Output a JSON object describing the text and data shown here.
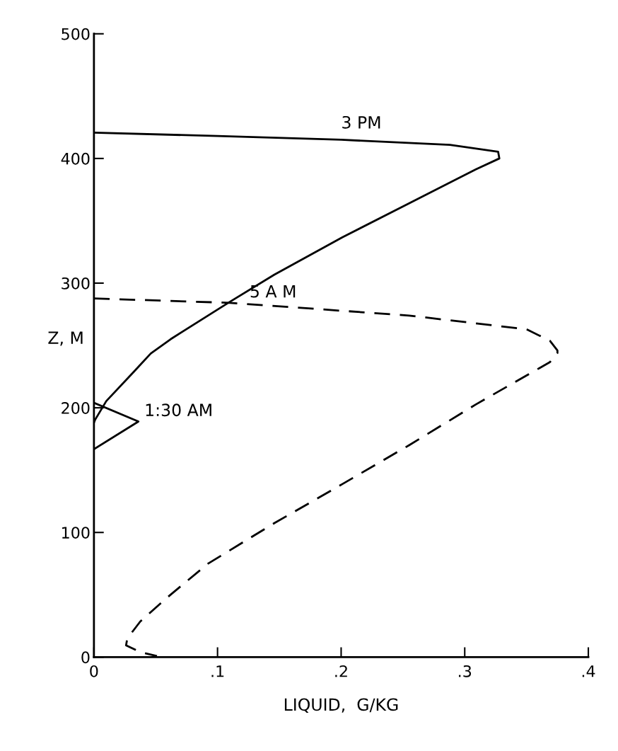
{
  "chart_data": {
    "type": "line",
    "xlabel": "LIQUID,  G/KG",
    "ylabel": "Z, M",
    "xlim": [
      0,
      0.4
    ],
    "ylim": [
      0,
      500
    ],
    "xticks": [
      0,
      {
        "value": 0.1,
        "label": ".1"
      },
      {
        "value": 0.2,
        "label": ".2"
      },
      {
        "value": 0.3,
        "label": ".3"
      },
      {
        "value": 0.4,
        "label": ".4"
      }
    ],
    "yticks": [
      0,
      100,
      200,
      300,
      400,
      500
    ],
    "grid": false,
    "legend": false,
    "marker": "none",
    "series": [
      {
        "name": "3 PM",
        "color": "#000000",
        "line_style": "solid",
        "x": [
          0,
          0.1,
          0.2,
          0.288,
          0.327,
          0.328,
          0.309,
          0.255,
          0.201,
          0.146,
          0.11,
          0.062,
          0.046,
          0.032,
          0.01,
          0.001,
          0
        ],
        "values": [
          420.7,
          418,
          415,
          410.9,
          405.4,
          400,
          391.3,
          364,
          336.8,
          306.8,
          285,
          255,
          243.6,
          228.6,
          205.4,
          190.5,
          188
        ]
      },
      {
        "name": "5 A M",
        "color": "#000000",
        "line_style": "dashed",
        "x": [
          0,
          0.11,
          0.255,
          0.35,
          0.369,
          0.375,
          0.375,
          0.369,
          0.309,
          0.255,
          0.201,
          0.146,
          0.092,
          0.059,
          0.0375,
          0.027,
          0.026,
          0.0375,
          0.051
        ],
        "values": [
          287.7,
          284.2,
          274,
          263,
          253.7,
          246,
          244,
          236.7,
          202.7,
          170,
          138.8,
          107.5,
          74.8,
          47.6,
          28.6,
          15,
          9.5,
          4,
          0.8
        ]
      },
      {
        "name": "1:30 AM",
        "color": "#000000",
        "line_style": "solid",
        "x": [
          0,
          0.036,
          0
        ],
        "values": [
          204,
          189,
          166.8
        ]
      }
    ]
  }
}
